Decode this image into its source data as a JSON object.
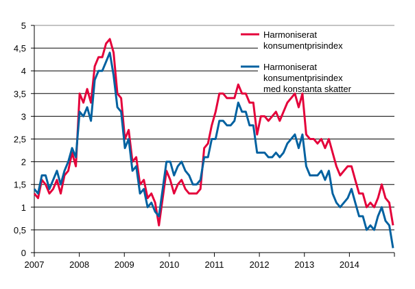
{
  "chart_data": {
    "type": "line",
    "title": "",
    "xlabel": "",
    "ylabel": "",
    "ylim": [
      0,
      5
    ],
    "yticks": [
      "0",
      "0,5",
      "1",
      "1,5",
      "2",
      "2,5",
      "3",
      "3,5",
      "4",
      "4,5",
      "5"
    ],
    "xticks": [
      "2007",
      "2008",
      "2009",
      "2010",
      "2011",
      "2012",
      "2013",
      "2014"
    ],
    "x_range": [
      "2007-01",
      "2014-12"
    ],
    "frequency": "monthly",
    "grid": "horizontal",
    "legend_position": "top-right",
    "series": [
      {
        "name": "Harmoniserat konsumentprisindex",
        "legend_lines": [
          "Harmoniserat",
          "konsumentprisindex"
        ],
        "color": "#e4003a",
        "values": [
          1.3,
          1.2,
          1.6,
          1.5,
          1.3,
          1.4,
          1.6,
          1.3,
          1.7,
          1.8,
          2.2,
          1.9,
          3.5,
          3.3,
          3.6,
          3.3,
          4.1,
          4.3,
          4.3,
          4.6,
          4.7,
          4.4,
          3.5,
          3.4,
          2.5,
          2.7,
          2.0,
          2.1,
          1.5,
          1.6,
          1.2,
          1.3,
          1.1,
          0.6,
          1.2,
          1.8,
          1.6,
          1.3,
          1.5,
          1.6,
          1.4,
          1.3,
          1.3,
          1.3,
          1.4,
          2.3,
          2.4,
          2.8,
          3.1,
          3.5,
          3.5,
          3.4,
          3.4,
          3.4,
          3.7,
          3.5,
          3.5,
          3.3,
          3.3,
          2.6,
          3.0,
          3.0,
          2.9,
          3.0,
          3.1,
          2.9,
          3.1,
          3.3,
          3.4,
          3.5,
          3.2,
          3.5,
          2.6,
          2.5,
          2.5,
          2.4,
          2.5,
          2.3,
          2.5,
          2.2,
          1.9,
          1.7,
          1.8,
          1.9,
          1.9,
          1.6,
          1.3,
          1.3,
          1.0,
          1.1,
          1.0,
          1.2,
          1.5,
          1.2,
          1.1,
          0.6
        ]
      },
      {
        "name": "Harmoniserat konsumentprisindex med konstanta skatter",
        "legend_lines": [
          "Harmoniserat",
          "konsumentprisindex",
          "med konstanta skatter"
        ],
        "color": "#0061a0",
        "values": [
          1.4,
          1.3,
          1.7,
          1.7,
          1.4,
          1.6,
          1.8,
          1.5,
          1.8,
          2.0,
          2.3,
          2.1,
          3.1,
          3.0,
          3.2,
          2.9,
          3.8,
          4.0,
          4.0,
          4.2,
          4.4,
          3.9,
          3.2,
          3.1,
          2.3,
          2.5,
          1.8,
          1.9,
          1.3,
          1.4,
          1.0,
          1.1,
          0.9,
          0.8,
          1.4,
          2.0,
          2.0,
          1.7,
          1.9,
          2.0,
          1.8,
          1.7,
          1.5,
          1.5,
          1.6,
          2.1,
          2.1,
          2.5,
          2.5,
          2.9,
          2.9,
          2.8,
          2.8,
          2.9,
          3.3,
          3.1,
          3.1,
          2.8,
          2.8,
          2.2,
          2.2,
          2.2,
          2.1,
          2.1,
          2.2,
          2.1,
          2.2,
          2.4,
          2.5,
          2.6,
          2.3,
          2.6,
          1.9,
          1.7,
          1.7,
          1.7,
          1.8,
          1.6,
          1.8,
          1.3,
          1.1,
          1.0,
          1.1,
          1.2,
          1.4,
          1.1,
          0.8,
          0.8,
          0.5,
          0.6,
          0.5,
          0.8,
          1.0,
          0.7,
          0.6,
          0.1
        ]
      }
    ]
  }
}
